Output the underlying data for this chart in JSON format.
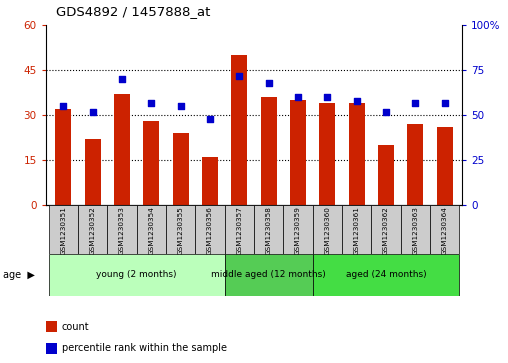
{
  "title": "GDS4892 / 1457888_at",
  "samples": [
    "GSM1230351",
    "GSM1230352",
    "GSM1230353",
    "GSM1230354",
    "GSM1230355",
    "GSM1230356",
    "GSM1230357",
    "GSM1230358",
    "GSM1230359",
    "GSM1230360",
    "GSM1230361",
    "GSM1230362",
    "GSM1230363",
    "GSM1230364"
  ],
  "counts": [
    32,
    22,
    37,
    28,
    24,
    16,
    50,
    36,
    35,
    34,
    34,
    20,
    27,
    26
  ],
  "percentiles": [
    55,
    52,
    70,
    57,
    55,
    48,
    72,
    68,
    60,
    60,
    58,
    52,
    57,
    57
  ],
  "left_ylim": [
    0,
    60
  ],
  "right_ylim": [
    0,
    100
  ],
  "left_yticks": [
    0,
    15,
    30,
    45,
    60
  ],
  "right_yticks": [
    0,
    25,
    50,
    75,
    100
  ],
  "right_yticklabels": [
    "0",
    "25",
    "50",
    "75",
    "100%"
  ],
  "bar_color": "#cc2200",
  "dot_color": "#0000cc",
  "grid_color": "#000000",
  "groups": [
    {
      "label": "young (2 months)",
      "indices": [
        0,
        1,
        2,
        3,
        4,
        5
      ],
      "color": "#bbffbb"
    },
    {
      "label": "middle aged (12 months)",
      "indices": [
        6,
        7,
        8
      ],
      "color": "#55cc55"
    },
    {
      "label": "aged (24 months)",
      "indices": [
        9,
        10,
        11,
        12,
        13
      ],
      "color": "#44dd44"
    }
  ],
  "tick_area_color": "#cccccc",
  "age_label": "age",
  "legend_count_label": "count",
  "legend_percentile_label": "percentile rank within the sample"
}
